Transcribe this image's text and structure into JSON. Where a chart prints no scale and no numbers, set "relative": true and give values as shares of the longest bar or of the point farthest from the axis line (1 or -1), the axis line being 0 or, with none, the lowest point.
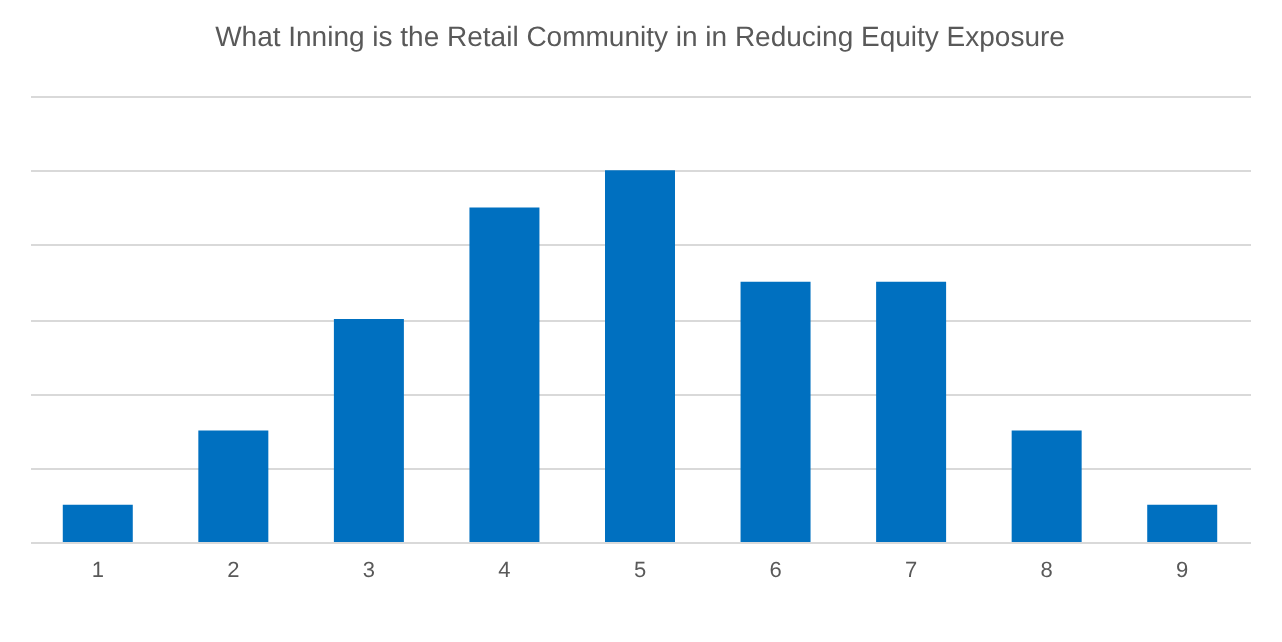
{
  "chart_data": {
    "type": "bar",
    "title": "What Inning is the Retail Community in in Reducing Equity Exposure",
    "categories": [
      "1",
      "2",
      "3",
      "4",
      "5",
      "6",
      "7",
      "8",
      "9"
    ],
    "values": [
      0.1,
      0.3,
      0.6,
      0.9,
      1,
      0.7,
      0.7,
      0.3,
      0.1
    ],
    "color": "#0070c0",
    "relative": true,
    "grid": "y"
  }
}
